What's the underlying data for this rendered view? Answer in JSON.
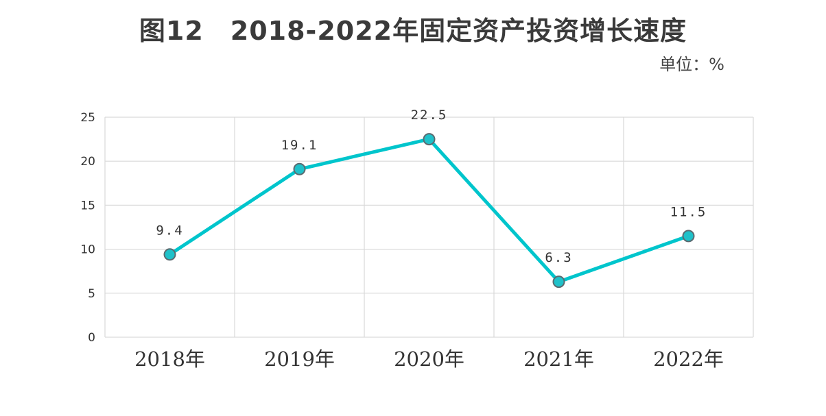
{
  "chart_data": {
    "type": "line",
    "title": "图12　2018-2022年固定资产投资增长速度",
    "unit_label": "单位：%",
    "categories": [
      "2018年",
      "2019年",
      "2020年",
      "2021年",
      "2022年"
    ],
    "series": [
      {
        "values": [
          9.4,
          19.1,
          22.5,
          6.3,
          11.5
        ],
        "data_labels": [
          "9.4",
          "19.1",
          "22.5",
          "6.3",
          "11.5"
        ],
        "color": "#00c5cc",
        "marker_color": "#1fc1c9",
        "marker_edge": "#5a6a70"
      }
    ],
    "ylim": [
      0,
      25
    ],
    "yticks": [
      0,
      5,
      10,
      15,
      20,
      25
    ],
    "ytick_labels": [
      "0",
      "5",
      "10",
      "15",
      "20",
      "25"
    ],
    "grid": true,
    "gridline_color": "#d9d9d9",
    "legend": "none"
  }
}
